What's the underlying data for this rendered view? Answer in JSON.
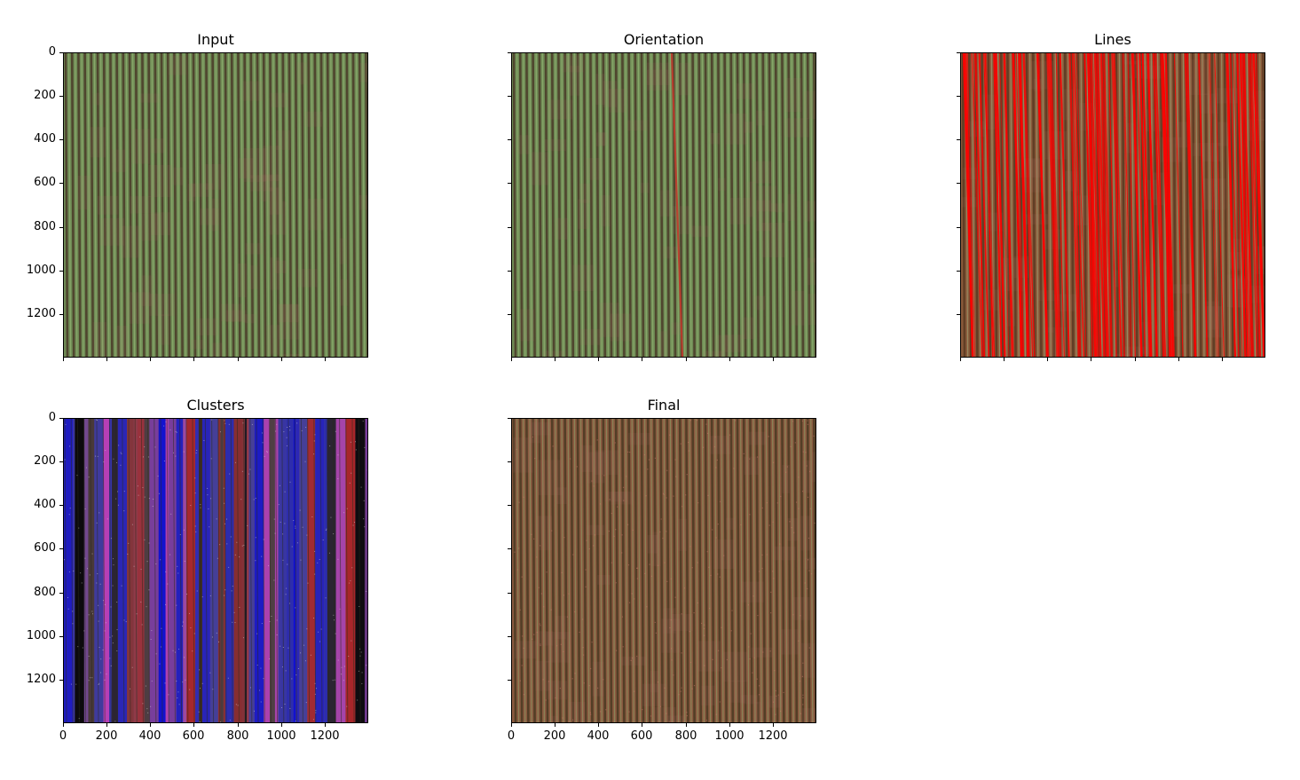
{
  "figure": {
    "panels": [
      {
        "id": "input",
        "title": "Input",
        "style": "green-rows",
        "show_y_labels": true,
        "show_x_labels": false
      },
      {
        "id": "orientation",
        "title": "Orientation",
        "style": "green-rows-orientation-line",
        "show_y_labels": false,
        "show_x_labels": false
      },
      {
        "id": "lines",
        "title": "Lines",
        "style": "red-lines",
        "show_y_labels": false,
        "show_x_labels": false
      },
      {
        "id": "clusters",
        "title": "Clusters",
        "style": "colored-clusters",
        "show_y_labels": true,
        "show_x_labels": true
      },
      {
        "id": "final",
        "title": "Final",
        "style": "brown-rows",
        "show_y_labels": false,
        "show_x_labels": true
      }
    ],
    "y_ticks": [
      "0",
      "200",
      "400",
      "600",
      "800",
      "1000",
      "1200"
    ],
    "x_ticks": [
      "0",
      "200",
      "400",
      "600",
      "800",
      "1000",
      "1200"
    ],
    "image_extent": 1400,
    "colors": {
      "field_green": "#6f8a55",
      "row_dark": "#4a3a28",
      "line_red": "#ff0000",
      "final_brown": "#8a5a40",
      "cluster_palette": [
        "#8a2a2a",
        "#2a2ab0",
        "#7a3aa0",
        "#c23ac0",
        "#3a2a1a",
        "#000000",
        "#1010d0",
        "#b02020"
      ]
    }
  }
}
